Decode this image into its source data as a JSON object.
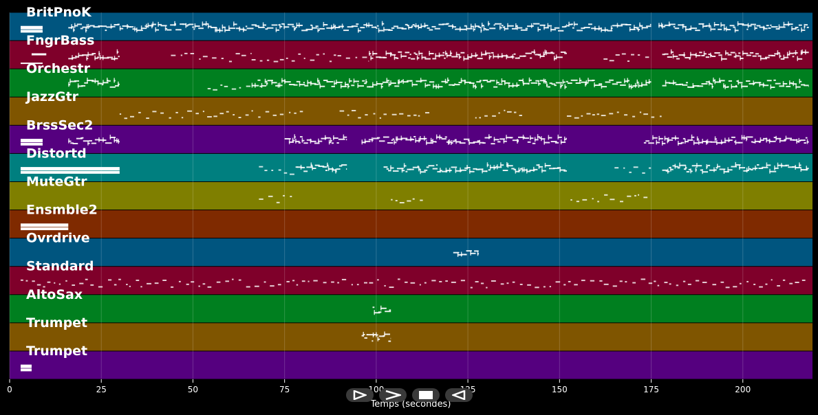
{
  "chart_data": {
    "type": "piano-roll",
    "xlabel": "Temps (secondes)",
    "xlim": [
      0,
      219
    ],
    "x_ticks": [
      0,
      25,
      50,
      75,
      100,
      125,
      150,
      175,
      200
    ],
    "tracks": [
      {
        "name": "BritPnoK",
        "color": "#00557f",
        "segments": [
          [
            3,
            9,
            "block"
          ],
          [
            16,
            30,
            "dense"
          ],
          [
            30,
            152,
            "dense"
          ],
          [
            152,
            175,
            "dense"
          ],
          [
            177,
            218,
            "dense"
          ]
        ]
      },
      {
        "name": "FngrBass",
        "color": "#7f002a",
        "segments": [
          [
            3,
            9,
            "low"
          ],
          [
            6,
            10,
            "high"
          ],
          [
            16,
            30,
            "dense"
          ],
          [
            44,
            66,
            "sparse"
          ],
          [
            66,
            98,
            "sparse"
          ],
          [
            98,
            152,
            "dense"
          ],
          [
            162,
            175,
            "sparse"
          ],
          [
            178,
            218,
            "dense"
          ]
        ]
      },
      {
        "name": "Orchestr",
        "color": "#007f1f",
        "segments": [
          [
            16,
            30,
            "dense"
          ],
          [
            54,
            66,
            "sparse"
          ],
          [
            66,
            100,
            "dense"
          ],
          [
            100,
            140,
            "dense"
          ],
          [
            140,
            175,
            "dense"
          ],
          [
            178,
            218,
            "dense"
          ]
        ]
      },
      {
        "name": "JazzGtr",
        "color": "#7f5500",
        "segments": [
          [
            30,
            80,
            "sparse"
          ],
          [
            90,
            115,
            "sparse"
          ],
          [
            127,
            140,
            "sparse"
          ],
          [
            152,
            178,
            "sparse"
          ]
        ]
      },
      {
        "name": "BrssSec2",
        "color": "#55007f",
        "segments": [
          [
            3,
            9,
            "block"
          ],
          [
            16,
            30,
            "dense"
          ],
          [
            75,
            92,
            "dense"
          ],
          [
            96,
            152,
            "dense"
          ],
          [
            173,
            218,
            "dense"
          ]
        ]
      },
      {
        "name": "Distortd",
        "color": "#007f7f",
        "segments": [
          [
            3,
            30,
            "block"
          ],
          [
            68,
            78,
            "sparse"
          ],
          [
            78,
            92,
            "dense"
          ],
          [
            102,
            152,
            "dense"
          ],
          [
            165,
            175,
            "sparse"
          ],
          [
            178,
            218,
            "dense"
          ]
        ]
      },
      {
        "name": "MuteGtr",
        "color": "#7f7f00",
        "segments": [
          [
            68,
            77,
            "sparse"
          ],
          [
            104,
            113,
            "sparse"
          ],
          [
            153,
            175,
            "sparse"
          ]
        ]
      },
      {
        "name": "Ensmble2",
        "color": "#7f2a00",
        "segments": [
          [
            3,
            16,
            "block"
          ]
        ]
      },
      {
        "name": "Ovrdrive",
        "color": "#00557f",
        "segments": [
          [
            121,
            128,
            "dense"
          ]
        ]
      },
      {
        "name": "Standard",
        "color": "#7f002a",
        "segments": [
          [
            3,
            218,
            "sparse"
          ]
        ]
      },
      {
        "name": "AltoSax",
        "color": "#007f1f",
        "segments": [
          [
            99,
            104,
            "dense"
          ]
        ]
      },
      {
        "name": "Trumpet",
        "color": "#7f5500",
        "segments": [
          [
            96,
            104,
            "dense"
          ]
        ]
      },
      {
        "name": "Trumpet",
        "color": "#55007f",
        "segments": [
          [
            3,
            6,
            "block"
          ]
        ]
      }
    ]
  },
  "controls": [
    {
      "name": "play-button"
    },
    {
      "name": "fast-forward-button"
    },
    {
      "name": "stop-button"
    },
    {
      "name": "rewind-button"
    }
  ]
}
